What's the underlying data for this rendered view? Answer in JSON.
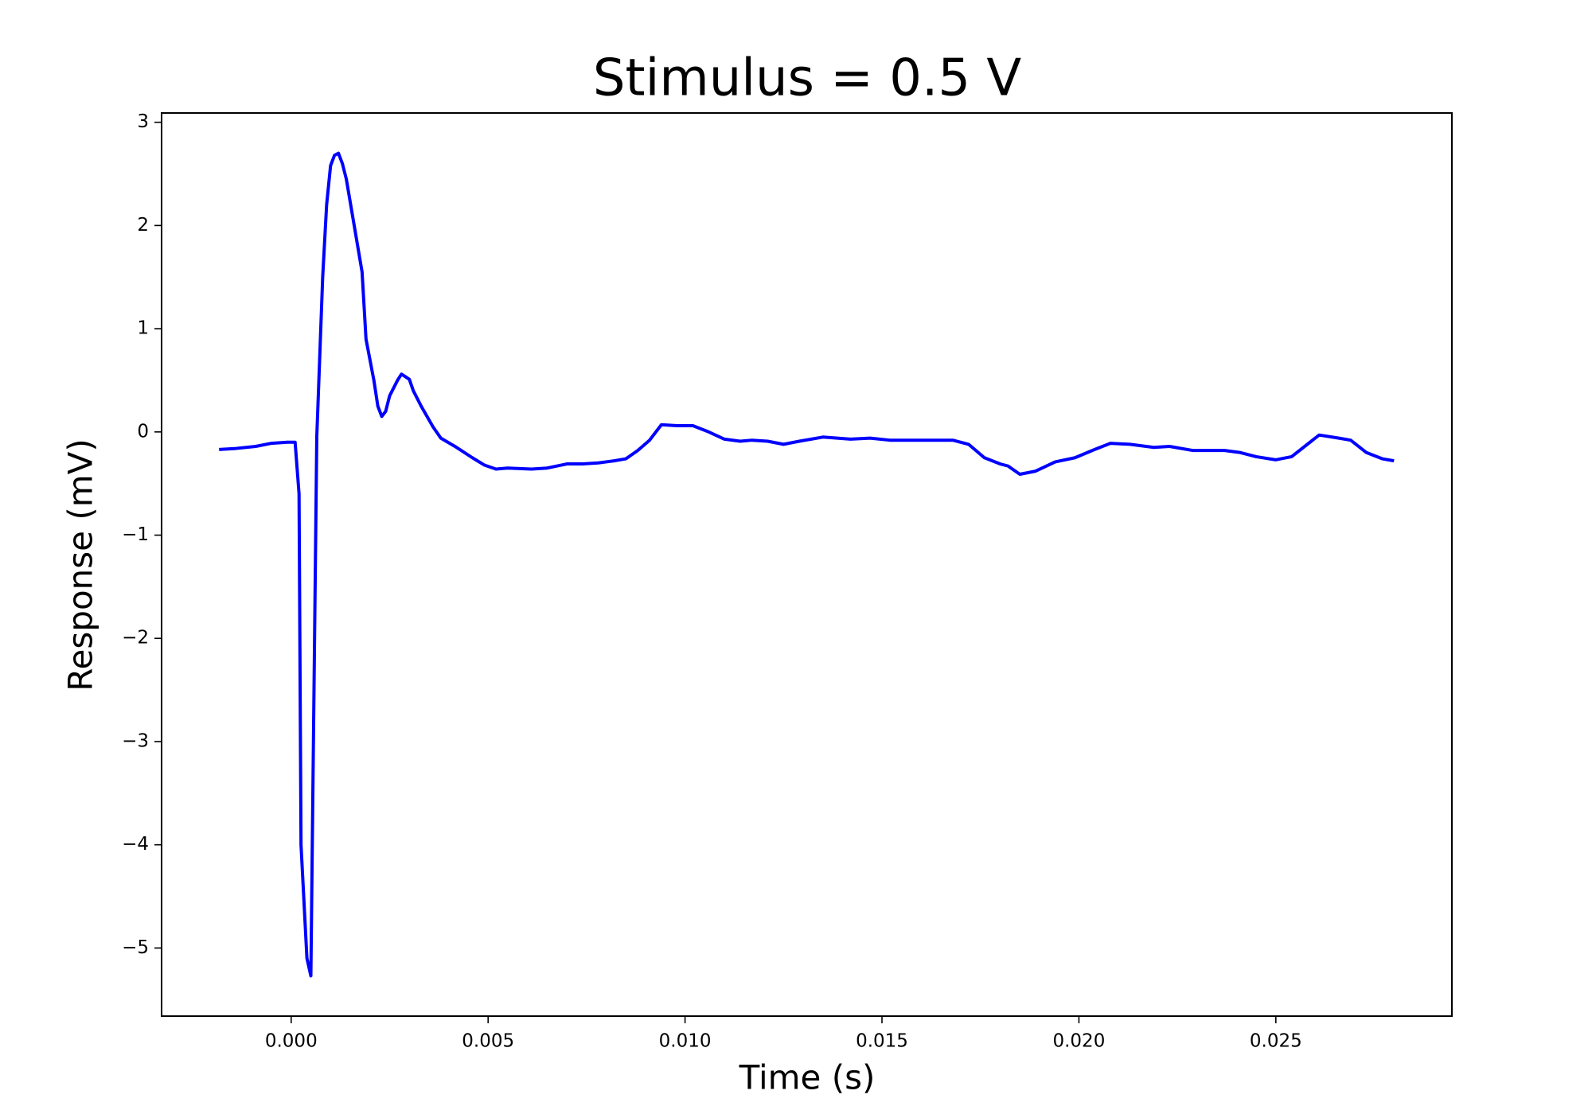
{
  "chart_data": {
    "type": "line",
    "title": "Stimulus = 0.5 V",
    "x_label": "Time (s)",
    "y_label": "Response (mV)",
    "x": [
      -0.00183,
      -0.0014,
      -0.0009,
      -0.0005,
      -0.0001,
      0.0001,
      0.0002,
      0.00025,
      0.0004,
      0.0005,
      0.00065,
      0.0008,
      0.0009,
      0.001,
      0.0011,
      0.0012,
      0.0013,
      0.0014,
      0.0016,
      0.0018,
      0.0019,
      0.0021,
      0.0022,
      0.0023,
      0.0024,
      0.0025,
      0.0027,
      0.0028,
      0.003,
      0.0031,
      0.0033,
      0.0036,
      0.0038,
      0.0042,
      0.0046,
      0.0049,
      0.0052,
      0.0055,
      0.0061,
      0.0065,
      0.007,
      0.0074,
      0.0078,
      0.0082,
      0.0085,
      0.0088,
      0.0091,
      0.0094,
      0.0098,
      0.0102,
      0.0106,
      0.011,
      0.0114,
      0.0117,
      0.0121,
      0.0125,
      0.0129,
      0.0135,
      0.0142,
      0.0147,
      0.0152,
      0.0157,
      0.0162,
      0.0168,
      0.0172,
      0.0176,
      0.018,
      0.0182,
      0.0185,
      0.0189,
      0.0194,
      0.0199,
      0.0204,
      0.0208,
      0.0213,
      0.0219,
      0.0223,
      0.0229,
      0.0237,
      0.0241,
      0.0245,
      0.025,
      0.0254,
      0.0258,
      0.0261,
      0.0266,
      0.0269,
      0.0273,
      0.0277,
      0.028
    ],
    "series": [
      {
        "name": "Response",
        "color": "#0000ff",
        "values": [
          -0.17,
          -0.16,
          -0.14,
          -0.11,
          -0.1,
          -0.1,
          -0.6,
          -4.0,
          -5.1,
          -5.27,
          -0.05,
          1.5,
          2.2,
          2.58,
          2.68,
          2.7,
          2.6,
          2.45,
          2.0,
          1.55,
          0.9,
          0.5,
          0.25,
          0.15,
          0.2,
          0.35,
          0.5,
          0.56,
          0.51,
          0.4,
          0.25,
          0.05,
          -0.06,
          -0.15,
          -0.25,
          -0.32,
          -0.36,
          -0.35,
          -0.36,
          -0.35,
          -0.31,
          -0.31,
          -0.3,
          -0.28,
          -0.26,
          -0.18,
          -0.08,
          0.07,
          0.06,
          0.06,
          0.0,
          -0.07,
          -0.09,
          -0.08,
          -0.09,
          -0.12,
          -0.09,
          -0.05,
          -0.07,
          -0.06,
          -0.08,
          -0.08,
          -0.08,
          -0.08,
          -0.12,
          -0.25,
          -0.31,
          -0.33,
          -0.41,
          -0.38,
          -0.29,
          -0.25,
          -0.17,
          -0.11,
          -0.12,
          -0.15,
          -0.14,
          -0.18,
          -0.18,
          -0.2,
          -0.24,
          -0.27,
          -0.24,
          -0.12,
          -0.03,
          -0.06,
          -0.08,
          -0.2,
          -0.26,
          -0.28
        ]
      }
    ],
    "xlim": [
      -0.00329,
      0.02947
    ],
    "ylim": [
      -5.66,
      3.09
    ],
    "xticks": [
      {
        "value": 0,
        "label": "0.000"
      },
      {
        "value": 0.005,
        "label": "0.005"
      },
      {
        "value": 0.01,
        "label": "0.010"
      },
      {
        "value": 0.015,
        "label": "0.015"
      },
      {
        "value": 0.02,
        "label": "0.020"
      },
      {
        "value": 0.025,
        "label": "0.025"
      }
    ],
    "yticks": [
      {
        "value": -5,
        "label": "−5"
      },
      {
        "value": -4,
        "label": "−4"
      },
      {
        "value": -3,
        "label": "−3"
      },
      {
        "value": -2,
        "label": "−2"
      },
      {
        "value": -1,
        "label": "−1"
      },
      0,
      1,
      2,
      3
    ],
    "grid": false
  }
}
